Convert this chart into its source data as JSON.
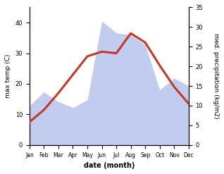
{
  "months": [
    "Jan",
    "Feb",
    "Mar",
    "Apr",
    "May",
    "Jun",
    "Jul",
    "Aug",
    "Sep",
    "Oct",
    "Nov",
    "Dec"
  ],
  "month_indices": [
    1,
    2,
    3,
    4,
    5,
    6,
    7,
    8,
    9,
    10,
    11,
    12
  ],
  "temp_max": [
    7.5,
    11.5,
    17.0,
    23.0,
    29.0,
    30.5,
    30.0,
    36.5,
    33.5,
    26.0,
    19.0,
    13.5
  ],
  "precip": [
    10.0,
    13.5,
    11.0,
    9.5,
    11.5,
    31.5,
    28.5,
    28.0,
    25.5,
    14.0,
    17.0,
    15.0
  ],
  "temp_color": "#c0392b",
  "precip_fill_color": "#b8c4ec",
  "precip_fill_alpha": 0.85,
  "xlabel": "date (month)",
  "ylabel_left": "max temp (C)",
  "ylabel_right": "med. precipitation (kg/m2)",
  "ylim_left": [
    0,
    45
  ],
  "ylim_right": [
    0,
    35
  ],
  "yticks_left": [
    0,
    10,
    20,
    30,
    40
  ],
  "yticks_right": [
    0,
    5,
    10,
    15,
    20,
    25,
    30,
    35
  ],
  "background_color": "#ffffff",
  "line_width": 2.2,
  "figsize": [
    3.18,
    2.47
  ],
  "dpi": 100
}
